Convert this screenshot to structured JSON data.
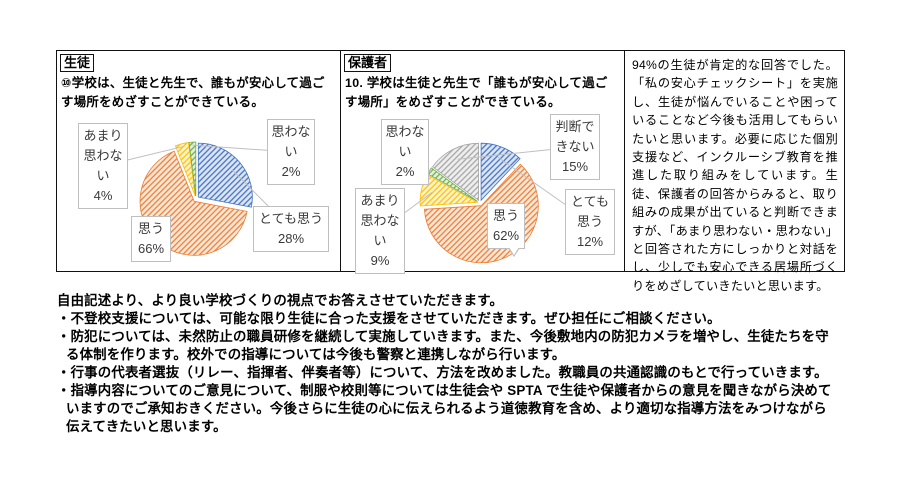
{
  "chart_data": [
    {
      "type": "pie",
      "group": "生徒",
      "question": "⑩学校は、生徒と先生で、誰もが安心して過ごす場所をめざすことができている。",
      "unit": "%",
      "start": "top",
      "direction": "clockwise",
      "style": "hatched-exploded-slices-with-callout-labels",
      "slices": [
        {
          "label": "とても思う",
          "value": 28,
          "color": "#4472C4"
        },
        {
          "label": "思う",
          "value": 66,
          "color": "#ED7D31"
        },
        {
          "label": "あまり思わない",
          "value": 4,
          "color": "#FFC000"
        },
        {
          "label": "思わない",
          "value": 2,
          "color": "#70AD47"
        }
      ]
    },
    {
      "type": "pie",
      "group": "保護者",
      "question": "10. 学校は生徒と先生で「誰もが安心して過ごす場所」をめざすことができている。",
      "unit": "%",
      "start": "top",
      "direction": "clockwise",
      "style": "hatched-exploded-slices-with-callout-labels",
      "slices": [
        {
          "label": "とても思う",
          "value": 12,
          "color": "#4472C4"
        },
        {
          "label": "思う",
          "value": 62,
          "color": "#ED7D31"
        },
        {
          "label": "あまり思わない",
          "value": 9,
          "color": "#FFC000"
        },
        {
          "label": "思わない",
          "value": 2,
          "color": "#70AD47"
        },
        {
          "label": "判断できない",
          "value": 15,
          "color": "#A5A5A5"
        }
      ]
    }
  ],
  "comment_panel": {
    "text": "94%の生徒が肯定的な回答でした。「私の安心チェックシート」を実施し、生徒が悩んでいることや困っていることなど今後も活用してもらいたいと思います。必要に応じた個別支援など、インクルーシブ教育を推進した取り組みをしています。生徒、保護者の回答からみると、取り組みの成果が出ていると判断できますが、「あまり思わない・思わない」と回答された方にしっかりと対話をし、少しでも安心できる居場所づくりをめざしていきたいと思います。"
  },
  "free_text": {
    "lines": [
      {
        "text": "自由記述より、より良い学校づくりの視点でお答えさせていただきます。",
        "indent": 0
      },
      {
        "text": "・不登校支援については、可能な限り生徒に合った支援をさせていただきます。ぜひ担任にご相談ください。",
        "indent": 0
      },
      {
        "text": "・防犯については、未然防止の職員研修を継続して実施していきます。また、今後敷地内の防犯カメラを増やし、生徒たちを守",
        "indent": 0
      },
      {
        "text": "る体制を作ります。校外での指導については今後も警察と連携しながら行います。",
        "indent": 1
      },
      {
        "text": "・行事の代表者選抜（リレー、指揮者、伴奏者等）について、方法を改めました。教職員の共通認識のもとで行っていきます。",
        "indent": 0
      },
      {
        "text": "・指導内容についてのご意見について、制服や校則等については生徒会や SPTA で生徒や保護者からの意見を聞きながら決めて",
        "indent": 0
      },
      {
        "text": "いますのでご承知おきください。今後さらに生徒の心に伝えられるよう道徳教育を含め、より適切な指導方法をみつけながら",
        "indent": 1
      },
      {
        "text": "伝えてきたいと思います。",
        "indent": 1
      }
    ]
  },
  "colors": {
    "panel_border": "#111111",
    "callout_border": "#BFBFBF",
    "leader_line": "#BFBFBF"
  }
}
